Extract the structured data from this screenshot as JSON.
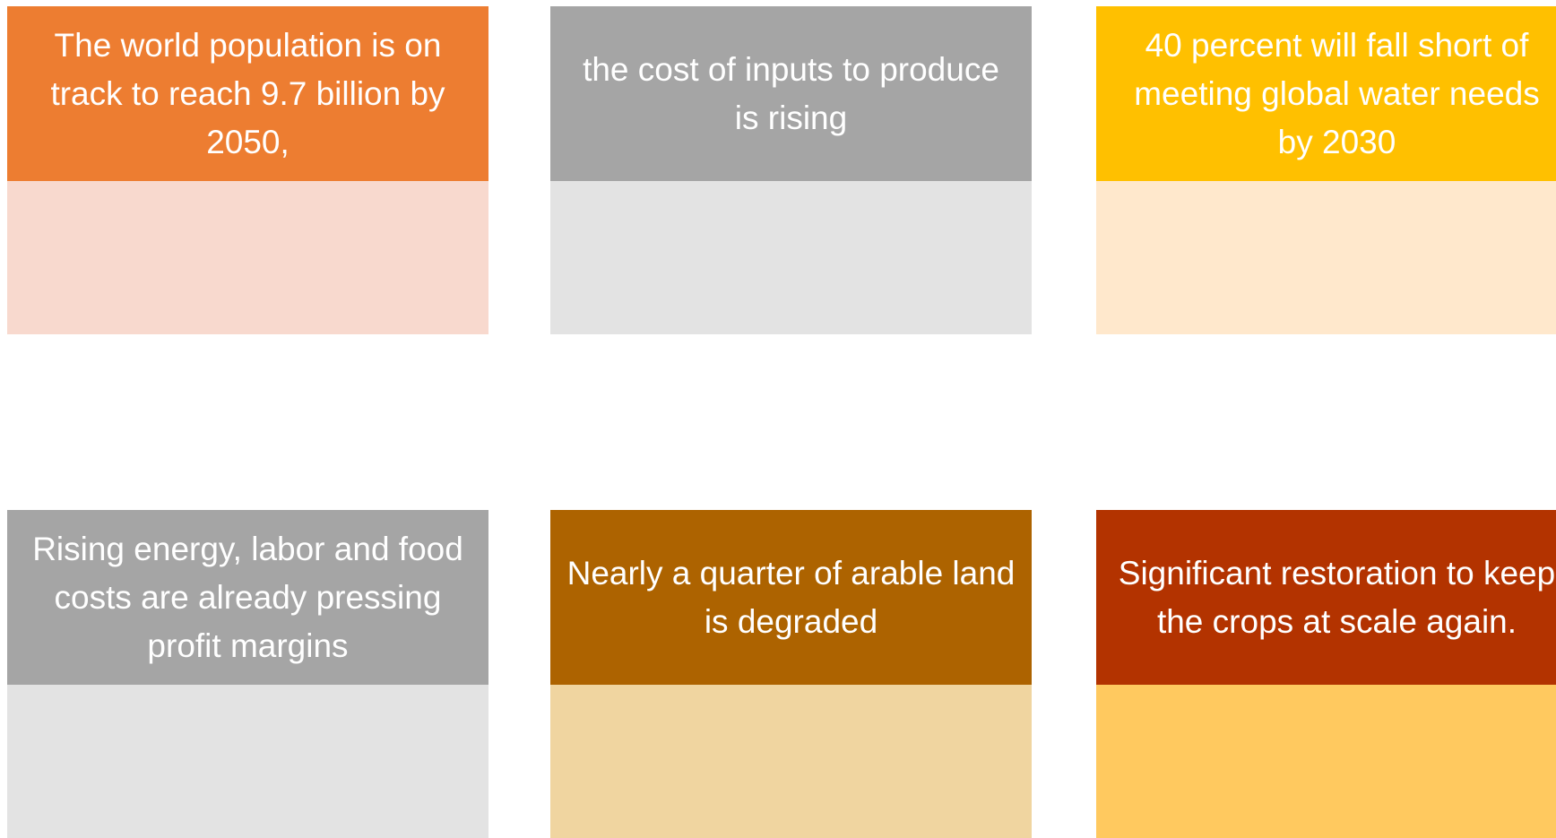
{
  "cards": [
    {
      "text": "The world population is on track to reach 9.7 billion by 2050,"
    },
    {
      "text": "the cost of inputs to produce is rising"
    },
    {
      "text": "40 percent will fall short of meeting global water needs by 2030"
    },
    {
      "text": "Rising energy, labor and food costs are already pressing profit margins"
    },
    {
      "text": "Nearly a quarter of arable land is degraded"
    },
    {
      "text": "Significant restoration to keep the crops at scale again."
    }
  ]
}
